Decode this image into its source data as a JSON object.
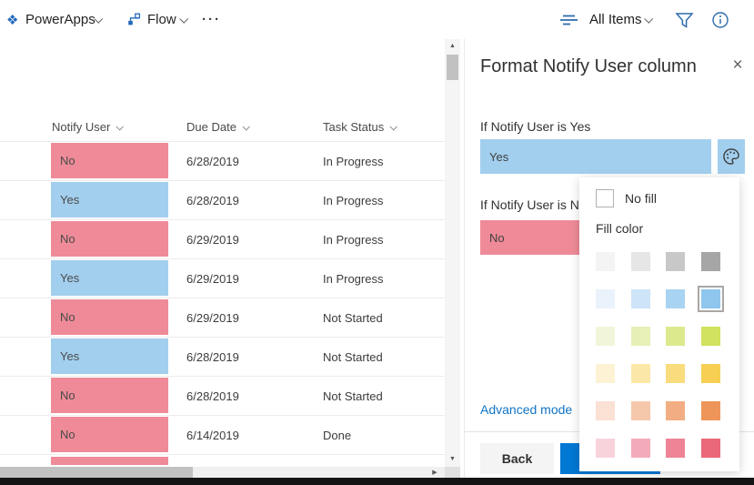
{
  "topbar": {
    "powerapps_label": "PowerApps",
    "flow_label": "Flow",
    "more_label": "···",
    "view_selector_label": "All Items",
    "icons": [
      "powerapps-icon",
      "flow-icon",
      "view-options-icon",
      "filter-icon",
      "info-icon"
    ]
  },
  "table": {
    "columns": [
      "Notify User",
      "Due Date",
      "Task Status"
    ],
    "rows": [
      {
        "notify": "No",
        "due": "6/28/2019",
        "status": "In Progress"
      },
      {
        "notify": "Yes",
        "due": "6/28/2019",
        "status": "In Progress"
      },
      {
        "notify": "No",
        "due": "6/29/2019",
        "status": "In Progress"
      },
      {
        "notify": "Yes",
        "due": "6/29/2019",
        "status": "In Progress"
      },
      {
        "notify": "No",
        "due": "6/29/2019",
        "status": "Not Started"
      },
      {
        "notify": "Yes",
        "due": "6/28/2019",
        "status": "Not Started"
      },
      {
        "notify": "No",
        "due": "6/28/2019",
        "status": "Not Started"
      },
      {
        "notify": "No",
        "due": "6/14/2019",
        "status": "Done"
      }
    ],
    "partial_row": {
      "fill": "no"
    },
    "colors": {
      "yes": "#a3cfee",
      "no": "#ef8b98"
    }
  },
  "panel": {
    "title": "Format Notify User column",
    "close_label": "×",
    "yes_section": {
      "label": "If Notify User is Yes",
      "value": "Yes"
    },
    "no_section": {
      "label": "If Notify User is No",
      "value": "No"
    },
    "advanced_link": "Advanced mode",
    "back_button": "Back",
    "accent_color": "#0078d4"
  },
  "popup": {
    "no_fill_label": "No fill",
    "fill_color_label": "Fill color",
    "swatch_rows": [
      [
        "#f4f4f4",
        "#e6e6e6",
        "#c8c8c8",
        "#a6a6a6"
      ],
      [
        "#eaf3fb",
        "#cee4f7",
        "#a9d3f2",
        "#8ec6ed"
      ],
      [
        "#f1f6da",
        "#e7f0b6",
        "#dcea8d",
        "#d0e25f"
      ],
      [
        "#fdf3d4",
        "#fbe8a9",
        "#f9dc7d",
        "#f7d053"
      ],
      [
        "#fae1d4",
        "#f6c8ab",
        "#f2ae82",
        "#ee9559"
      ],
      [
        "#f8d3db",
        "#f3abb9",
        "#ee8495",
        "#ea687a"
      ]
    ],
    "selected_swatch": {
      "row": 1,
      "col": 3
    }
  }
}
